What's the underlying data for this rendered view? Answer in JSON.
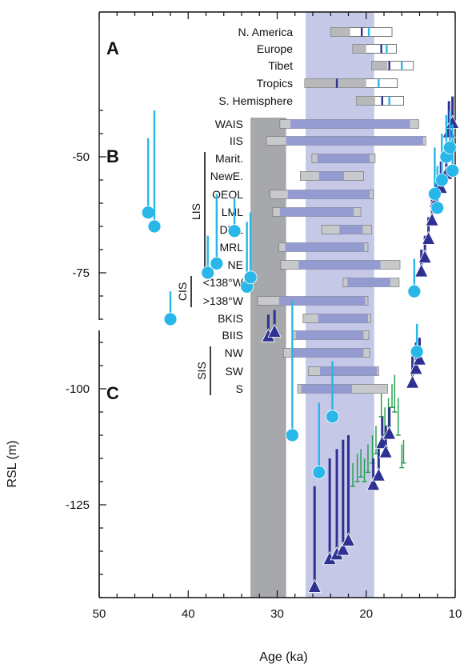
{
  "chart_data": {
    "type": "composite",
    "x_axis": {
      "label": "Age (ka)",
      "range": [
        50,
        10
      ],
      "ticks": [
        50,
        40,
        30,
        20,
        10
      ]
    },
    "y_axis": {
      "label": "RSL (m)",
      "range": [
        -145,
        -35
      ],
      "ticks": [
        -50,
        -75,
        -100,
        -125
      ]
    },
    "shaded_intervals": [
      {
        "start_ka": 33,
        "end_ka": 29,
        "color": "#a7a8ab"
      },
      {
        "start_ka": 26.8,
        "end_ka": 19.1,
        "color": "#c5c8e6"
      }
    ],
    "panel_A": {
      "letter": "A",
      "rows": [
        {
          "label": "N. America",
          "outer": [
            24,
            17.1
          ],
          "gray": [
            24,
            21.8
          ],
          "mean": 20.5,
          "mean_color": "#2e3192",
          "mark": 19.7
        },
        {
          "label": "Europe",
          "outer": [
            21.5,
            16.6
          ],
          "gray": [
            21.5,
            20
          ],
          "mean": 18.3,
          "mean_color": "#2e3192",
          "mark": 17.7
        },
        {
          "label": "Tibet",
          "outer": [
            19.4,
            14.7
          ],
          "gray": [
            19.4,
            17.6
          ],
          "mean": 17.4,
          "mean_color": "#2e3192",
          "mark": 16
        },
        {
          "label": "Tropics",
          "outer": [
            26.9,
            16.5
          ],
          "gray": [
            26.9,
            20
          ],
          "mean": 23.3,
          "mean_color": "#2e3192",
          "mark": 18.6
        },
        {
          "label": "S. Hemisphere",
          "outer": [
            21.1,
            15.8
          ],
          "gray": [
            21.1,
            19
          ],
          "mean": 18.2,
          "mean_color": "#2e3192",
          "mark": 17.4
        }
      ]
    },
    "panel_B": {
      "letter": "B",
      "rows": [
        {
          "label": "WAIS",
          "outer": [
            29.7,
            14.1
          ],
          "inner": [
            28.5,
            15.1
          ]
        },
        {
          "label": "IIS",
          "outer": [
            31.2,
            13.3
          ],
          "inner": [
            29,
            13.6
          ]
        },
        {
          "label": "Marit.",
          "outer": [
            26.1,
            19
          ],
          "inner": [
            25.5,
            19.6
          ]
        },
        {
          "label": "NewE.",
          "outer": [
            27.4,
            20.3
          ],
          "inner": [
            25.3,
            22.5
          ]
        },
        {
          "label": "OEOL",
          "outer": [
            30.8,
            19.2
          ],
          "inner": [
            28.8,
            19.6
          ]
        },
        {
          "label": "LML",
          "outer": [
            30.5,
            20.6
          ],
          "inner": [
            29.7,
            21.4
          ]
        },
        {
          "label": "DML",
          "outer": [
            25,
            19.4
          ],
          "inner": [
            23,
            20.4
          ]
        },
        {
          "label": "MRL",
          "outer": [
            29.8,
            19.8
          ],
          "inner": [
            29.1,
            20.2
          ]
        },
        {
          "label": "NE",
          "outer": [
            29.6,
            16.2
          ],
          "inner": [
            27.6,
            18.4
          ]
        },
        {
          "label": "<138°W",
          "outer": [
            22.6,
            16.3
          ],
          "inner": [
            22.1,
            17.3
          ]
        },
        {
          "label": ">138°W",
          "outer": [
            32.2,
            19.8
          ],
          "inner": [
            29.8,
            20.1
          ]
        },
        {
          "label": "BKIS",
          "outer": [
            27.1,
            19.5
          ],
          "inner": [
            25.4,
            19.8
          ]
        },
        {
          "label": "BIIS",
          "outer": [
            28.3,
            19.7
          ],
          "inner": [
            27.9,
            20.3
          ]
        },
        {
          "label": "NW",
          "outer": [
            29.3,
            19.6
          ],
          "inner": [
            28.4,
            20.3
          ]
        },
        {
          "label": "SW",
          "outer": [
            26.5,
            18.6
          ],
          "inner": [
            25.2,
            18.8
          ]
        },
        {
          "label": "S",
          "outer": [
            27.7,
            17.6
          ],
          "inner": [
            27.3,
            21.6
          ]
        }
      ],
      "groups": [
        {
          "label": "LIS",
          "from": "Marit.",
          "to": "NE"
        },
        {
          "label": "CIS",
          "from": "<138°W",
          "to": ">138°W"
        },
        {
          "label": "SIS",
          "from": "NW",
          "to": "S"
        }
      ]
    },
    "panel_C": {
      "letter": "C",
      "circles": [
        {
          "age": 44.5,
          "rsl": -62,
          "top": -46
        },
        {
          "age": 43.8,
          "rsl": -65,
          "top": -40
        },
        {
          "age": 42,
          "rsl": -85,
          "top": -79
        },
        {
          "age": 37.8,
          "rsl": -75,
          "top": -67
        },
        {
          "age": 36.8,
          "rsl": -73,
          "top": -58
        },
        {
          "age": 34.8,
          "rsl": -66,
          "top": -59
        },
        {
          "age": 33.4,
          "rsl": -78,
          "top": -64
        },
        {
          "age": 33,
          "rsl": -76,
          "top": -62
        },
        {
          "age": 28.3,
          "rsl": -110,
          "top": -81
        },
        {
          "age": 25.3,
          "rsl": -118,
          "top": -103
        },
        {
          "age": 23.8,
          "rsl": -106,
          "top": -94
        },
        {
          "age": 14.6,
          "rsl": -79,
          "top": -72
        },
        {
          "age": 14.3,
          "rsl": -92,
          "top": -86
        },
        {
          "age": 12.3,
          "rsl": -58,
          "top": -48
        },
        {
          "age": 12.0,
          "rsl": -61,
          "top": -52
        },
        {
          "age": 11.5,
          "rsl": -55,
          "top": -45
        },
        {
          "age": 11.0,
          "rsl": -50,
          "top": -41
        },
        {
          "age": 10.6,
          "rsl": -48,
          "top": -40
        },
        {
          "age": 10.3,
          "rsl": -53,
          "top": -43
        }
      ],
      "triangles": [
        {
          "age": 31.0,
          "rsl": -89,
          "top": -84
        },
        {
          "age": 30.3,
          "rsl": -88,
          "top": -83
        },
        {
          "age": 25.8,
          "rsl": -143,
          "top": -121
        },
        {
          "age": 24.1,
          "rsl": -137,
          "top": -115
        },
        {
          "age": 23.3,
          "rsl": -136,
          "top": -113
        },
        {
          "age": 22.6,
          "rsl": -135,
          "top": -111
        },
        {
          "age": 22.0,
          "rsl": -133,
          "top": -110
        },
        {
          "age": 19.2,
          "rsl": -121,
          "top": -115
        },
        {
          "age": 18.6,
          "rsl": -119,
          "top": -112
        },
        {
          "age": 18.2,
          "rsl": -112,
          "top": -106
        },
        {
          "age": 17.8,
          "rsl": -114,
          "top": -108
        },
        {
          "age": 17.4,
          "rsl": -110,
          "top": -104
        },
        {
          "age": 14.8,
          "rsl": -99,
          "top": -93
        },
        {
          "age": 14.4,
          "rsl": -96,
          "top": -90
        },
        {
          "age": 14.0,
          "rsl": -94,
          "top": -89
        },
        {
          "age": 13.8,
          "rsl": -75,
          "top": -70
        },
        {
          "age": 13.4,
          "rsl": -72,
          "top": -67
        },
        {
          "age": 13.0,
          "rsl": -68,
          "top": -63
        },
        {
          "age": 12.6,
          "rsl": -64,
          "top": -59
        },
        {
          "age": 12.2,
          "rsl": -60,
          "top": -55
        },
        {
          "age": 11.6,
          "rsl": -57,
          "top": -51
        },
        {
          "age": 11.0,
          "rsl": -54,
          "top": -48
        },
        {
          "age": 10.7,
          "rsl": -45,
          "top": -38
        },
        {
          "age": 10.3,
          "rsl": -43,
          "top": -37
        }
      ],
      "green_marks": [
        {
          "age": 21.5,
          "rsl": -121,
          "top": -116
        },
        {
          "age": 21.0,
          "rsl": -120,
          "top": -114
        },
        {
          "age": 20.6,
          "rsl": -119,
          "top": -113
        },
        {
          "age": 20.2,
          "rsl": -120,
          "top": -115
        },
        {
          "age": 19.8,
          "rsl": -118,
          "top": -112
        },
        {
          "age": 19.3,
          "rsl": -116,
          "top": -110
        },
        {
          "age": 18.9,
          "rsl": -114,
          "top": -108
        },
        {
          "age": 18.3,
          "rsl": -106,
          "top": -101
        },
        {
          "age": 17.9,
          "rsl": -110,
          "top": -104
        },
        {
          "age": 17.5,
          "rsl": -108,
          "top": -102
        },
        {
          "age": 17.1,
          "rsl": -104,
          "top": -99
        },
        {
          "age": 16.8,
          "rsl": -105,
          "top": -97
        },
        {
          "age": 16.4,
          "rsl": -110,
          "top": -102
        },
        {
          "age": 16.0,
          "rsl": -117,
          "top": -112
        },
        {
          "age": 15.8,
          "rsl": -116,
          "top": -111
        }
      ]
    }
  },
  "colors": {
    "cyan": "#29b6e8",
    "navy": "#2e3192",
    "green": "#1e9b48",
    "gray_bar": "#c8c9cb",
    "blue_bar": "#939bd1"
  }
}
